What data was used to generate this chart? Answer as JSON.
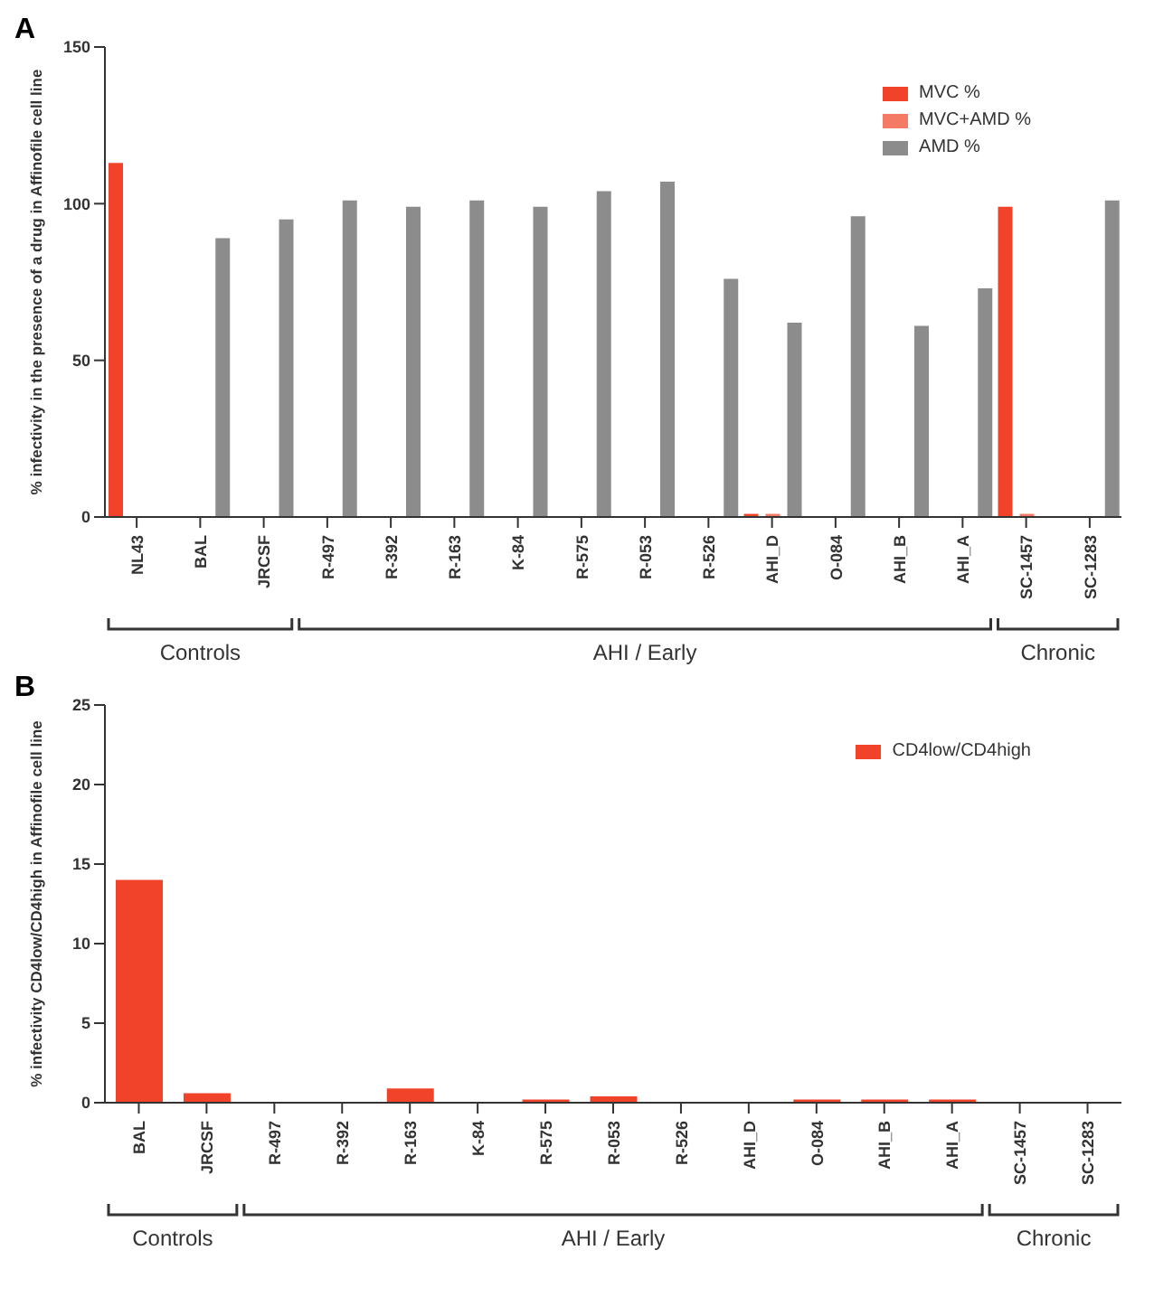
{
  "chart_data": [
    {
      "type": "bar",
      "title": "A",
      "ylabel": "% infectivity in the presence of a drug in Affinofile cell line",
      "categories": [
        "NL43",
        "BAL",
        "JRCSF",
        "R-497",
        "R-392",
        "R-163",
        "K-84",
        "R-575",
        "R-053",
        "R-526",
        "AHI_D",
        "O-084",
        "AHI_B",
        "AHI_A",
        "SC-1457",
        "SC-1283"
      ],
      "series": [
        {
          "name": "MVC %",
          "color": "#f0432a",
          "values": [
            113,
            null,
            null,
            null,
            null,
            null,
            null,
            null,
            null,
            null,
            1,
            null,
            null,
            null,
            99,
            null
          ]
        },
        {
          "name": "MVC+AMD %",
          "color": "#f47a66",
          "values": [
            null,
            null,
            null,
            null,
            null,
            null,
            null,
            null,
            null,
            null,
            1,
            null,
            null,
            null,
            1,
            null
          ]
        },
        {
          "name": "AMD %",
          "color": "#8c8c8c",
          "values": [
            null,
            89,
            95,
            101,
            99,
            101,
            99,
            104,
            107,
            76,
            62,
            96,
            61,
            73,
            null,
            101
          ]
        }
      ],
      "ylim": [
        0,
        150
      ],
      "yticks": [
        0,
        50,
        100,
        150
      ],
      "grid": false,
      "legend": "top right",
      "annotations": [
        "Controls",
        "AHI / Early",
        "Chronic"
      ]
    },
    {
      "type": "bar",
      "title": "B",
      "ylabel": "% infectivity CD4low/CD4high in Affinofile cell line",
      "categories": [
        "BAL",
        "JRCSF",
        "R-497",
        "R-392",
        "R-163",
        "K-84",
        "R-575",
        "R-053",
        "R-526",
        "AHI_D",
        "O-084",
        "AHI_B",
        "AHI_A",
        "SC-1457",
        "SC-1283"
      ],
      "series": [
        {
          "name": "CD4low/CD4high",
          "color": "#f0432a",
          "values": [
            14,
            0.6,
            null,
            null,
            0.9,
            null,
            0.2,
            0.4,
            null,
            null,
            0.2,
            0.2,
            0.2,
            null,
            null
          ]
        }
      ],
      "ylim": [
        0,
        25
      ],
      "yticks": [
        0,
        5,
        10,
        15,
        20,
        25
      ],
      "grid": false,
      "legend": "top right",
      "annotations": [
        "Controls",
        "AHI / Early",
        "Chronic"
      ]
    }
  ]
}
